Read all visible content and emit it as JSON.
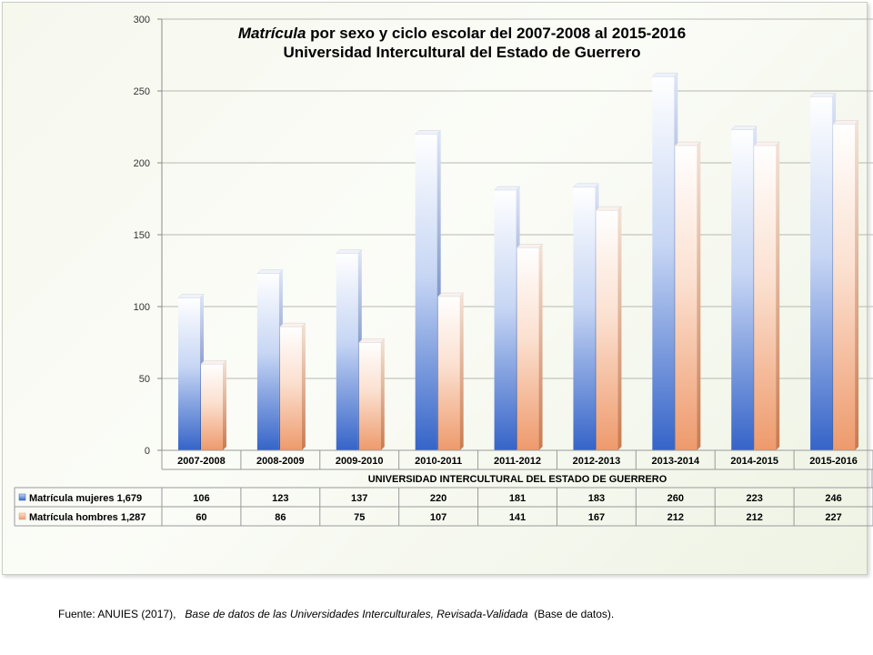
{
  "chart_data": {
    "type": "bar",
    "title_emph": "Matrícula",
    "title_rest": " por sexo y ciclo escolar del 2007-2008 al 2015-2016",
    "subtitle": "Universidad Intercultural del Estado de Guerrero",
    "category_group_label": "UNIVERSIDAD INTERCULTURAL DEL ESTADO DE GUERRERO",
    "categories": [
      "2007-2008",
      "2008-2009",
      "2009-2010",
      "2010-2011",
      "2011-2012",
      "2012-2013",
      "2013-2014",
      "2014-2015",
      "2015-2016"
    ],
    "series": [
      {
        "name": "Matrícula mujeres 1,679",
        "values": [
          106,
          123,
          137,
          220,
          181,
          183,
          260,
          223,
          246
        ],
        "color": "#3f6fd0"
      },
      {
        "name": "Matrícula hombres 1,287",
        "values": [
          60,
          86,
          75,
          107,
          141,
          167,
          212,
          212,
          227
        ],
        "color": "#f0a37a"
      }
    ],
    "ylim": [
      0,
      300
    ],
    "yticks": [
      0,
      50,
      100,
      150,
      200,
      250,
      300
    ],
    "grid": true,
    "legend": "data-table"
  },
  "source": {
    "prefix": "Fuente: ANUIES (2017),",
    "italic": "Base de datos de las Universidades  Interculturales, Revisada-Validada",
    "suffix": "(Base de datos)."
  }
}
